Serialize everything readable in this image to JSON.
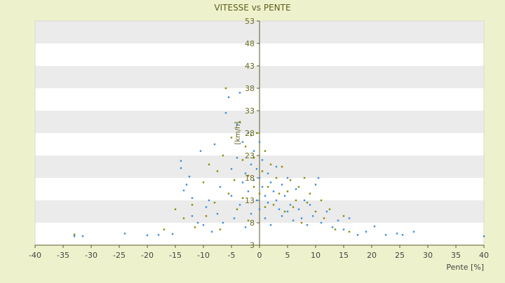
{
  "chart_data": {
    "type": "scatter",
    "title": "VITESSE vs PENTE",
    "xlabel": "Pente [%]",
    "ylabel": "[km/h]",
    "xlim": [
      -40,
      40
    ],
    "ylim": [
      3,
      53
    ],
    "x_ticks": [
      "-40",
      "-35",
      "-30",
      "-25",
      "-20",
      "-15",
      "-10",
      "-5",
      "0",
      "5",
      "10",
      "15",
      "20",
      "25",
      "30",
      "35",
      "40"
    ],
    "y_ticks": [
      "3",
      "8",
      "13",
      "18",
      "23",
      "28",
      "33",
      "38",
      "43",
      "48",
      "53"
    ],
    "grid": "horizontal bands",
    "legend": "none",
    "series": [
      {
        "color": "#3b8fd9",
        "points": [
          [
            -33,
            5.0
          ],
          [
            -31.5,
            5.0
          ],
          [
            -24,
            5.6
          ],
          [
            -20,
            5.2
          ],
          [
            -18,
            5.3
          ],
          [
            -15.5,
            5.5
          ],
          [
            -14,
            21.8
          ],
          [
            -14,
            20.2
          ],
          [
            -13.5,
            15.2
          ],
          [
            -13,
            16.5
          ],
          [
            -12.5,
            18.3
          ],
          [
            -12,
            13.5
          ],
          [
            -12,
            9.5
          ],
          [
            -11,
            8.0
          ],
          [
            -10.5,
            24.0
          ],
          [
            -10,
            7.5
          ],
          [
            -9.5,
            11.5
          ],
          [
            -9,
            13.0
          ],
          [
            -8.5,
            6.0
          ],
          [
            -8,
            25.5
          ],
          [
            -7.5,
            10.0
          ],
          [
            -7,
            16.0
          ],
          [
            -6.5,
            8.0
          ],
          [
            -6,
            32.5
          ],
          [
            -5.5,
            36.0
          ],
          [
            -5,
            20.0
          ],
          [
            -5,
            14.0
          ],
          [
            -4.5,
            9.0
          ],
          [
            -4,
            22.5
          ],
          [
            -4,
            30.0
          ],
          [
            -3.5,
            37.0
          ],
          [
            -3.5,
            12.0
          ],
          [
            -3,
            17.0
          ],
          [
            -3,
            26.0
          ],
          [
            -2.5,
            19.0
          ],
          [
            -2.5,
            7.0
          ],
          [
            -2,
            28.0
          ],
          [
            -2,
            15.0
          ],
          [
            -1.5,
            21.0
          ],
          [
            -1.5,
            10.0
          ],
          [
            -1,
            24.0
          ],
          [
            -1,
            17.5
          ],
          [
            -0.5,
            13.0
          ],
          [
            -0.5,
            20.0
          ],
          [
            0,
            18.0
          ],
          [
            0,
            11.0
          ],
          [
            0,
            26.0
          ],
          [
            0.5,
            16.0
          ],
          [
            0.5,
            22.0
          ],
          [
            1,
            14.0
          ],
          [
            1,
            9.0
          ],
          [
            1.5,
            19.0
          ],
          [
            1.5,
            12.5
          ],
          [
            2,
            17.0
          ],
          [
            2,
            7.5
          ],
          [
            2.5,
            15.0
          ],
          [
            3,
            13.0
          ],
          [
            3,
            20.5
          ],
          [
            3.5,
            11.0
          ],
          [
            4,
            16.5
          ],
          [
            4,
            9.5
          ],
          [
            4.5,
            14.0
          ],
          [
            5,
            10.5
          ],
          [
            5,
            18.0
          ],
          [
            5.5,
            12.0
          ],
          [
            6,
            8.5
          ],
          [
            6.5,
            15.5
          ],
          [
            7,
            11.0
          ],
          [
            7.5,
            9.0
          ],
          [
            8,
            13.0
          ],
          [
            8.5,
            7.5
          ],
          [
            9,
            12.0
          ],
          [
            9.5,
            9.5
          ],
          [
            10,
            16.5
          ],
          [
            10.5,
            18.0
          ],
          [
            11,
            8.0
          ],
          [
            12,
            10.5
          ],
          [
            13,
            7.0
          ],
          [
            14,
            8.5
          ],
          [
            15,
            6.5
          ],
          [
            16,
            9.0
          ],
          [
            17.5,
            5.3
          ],
          [
            19,
            6.0
          ],
          [
            20.5,
            7.2
          ],
          [
            22.5,
            5.3
          ],
          [
            24.5,
            5.6
          ],
          [
            25.5,
            5.3
          ],
          [
            27.5,
            6.0
          ],
          [
            40,
            5.0
          ]
        ]
      },
      {
        "color": "#8a8a00",
        "points": [
          [
            -33,
            5.4
          ],
          [
            -17,
            6.5
          ],
          [
            -15,
            11.0
          ],
          [
            -13.5,
            9.0
          ],
          [
            -12,
            12.0
          ],
          [
            -11.5,
            7.0
          ],
          [
            -10,
            17.0
          ],
          [
            -9.5,
            9.5
          ],
          [
            -9,
            21.0
          ],
          [
            -8,
            12.5
          ],
          [
            -7.5,
            19.5
          ],
          [
            -7,
            6.5
          ],
          [
            -6.5,
            23.0
          ],
          [
            -6,
            38.0
          ],
          [
            -5.5,
            14.5
          ],
          [
            -5,
            27.0
          ],
          [
            -4.5,
            17.5
          ],
          [
            -4,
            11.0
          ],
          [
            -3.5,
            30.5
          ],
          [
            -3,
            22.0
          ],
          [
            -3,
            13.5
          ],
          [
            -2.5,
            25.0
          ],
          [
            -2,
            18.5
          ],
          [
            -2,
            8.5
          ],
          [
            -1.5,
            27.5
          ],
          [
            -1,
            16.0
          ],
          [
            -1,
            22.5
          ],
          [
            -0.5,
            28.0
          ],
          [
            0,
            14.5
          ],
          [
            0.5,
            19.5
          ],
          [
            1,
            24.0
          ],
          [
            1,
            11.5
          ],
          [
            1.5,
            16.0
          ],
          [
            2,
            21.0
          ],
          [
            2.5,
            12.0
          ],
          [
            3,
            18.0
          ],
          [
            3.5,
            14.5
          ],
          [
            4,
            20.5
          ],
          [
            4.5,
            10.5
          ],
          [
            5,
            15.0
          ],
          [
            5.5,
            17.5
          ],
          [
            6,
            11.5
          ],
          [
            6.5,
            13.0
          ],
          [
            7,
            16.0
          ],
          [
            7.5,
            8.0
          ],
          [
            8,
            18.0
          ],
          [
            8.5,
            12.5
          ],
          [
            9,
            14.5
          ],
          [
            10,
            10.5
          ],
          [
            11,
            13.0
          ],
          [
            11.5,
            9.0
          ],
          [
            12.5,
            11.0
          ],
          [
            13.5,
            6.5
          ],
          [
            15,
            9.5
          ],
          [
            16,
            6.0
          ]
        ]
      }
    ]
  }
}
